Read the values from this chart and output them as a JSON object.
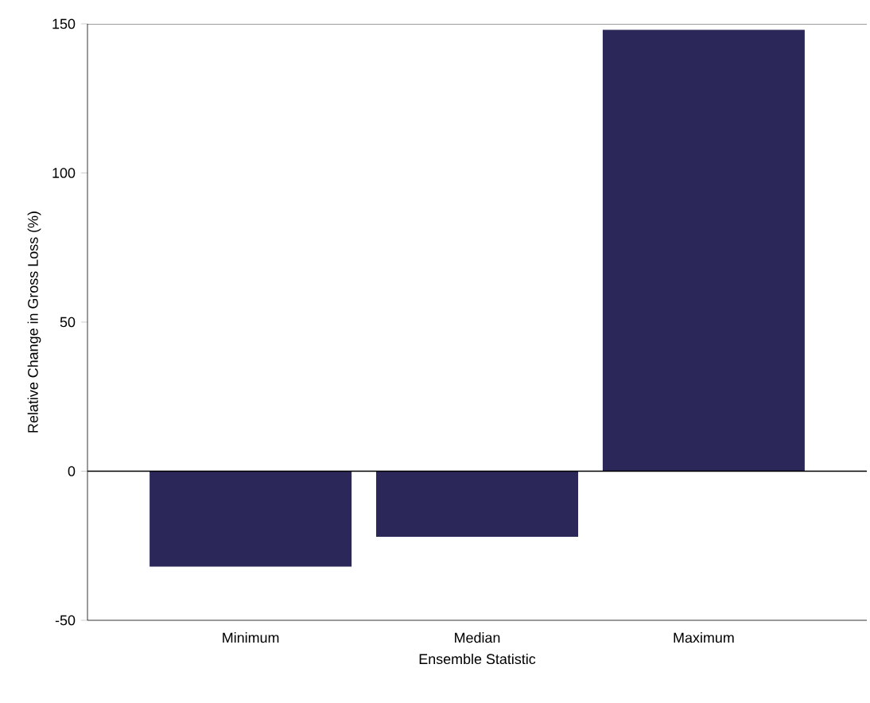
{
  "chart_data": {
    "type": "bar",
    "xlabel": "Ensemble Statistic",
    "ylabel": "Relative Change in Gross Loss (%)",
    "categories": [
      "Minimum",
      "Median",
      "Maximum"
    ],
    "values": [
      -32,
      -22,
      148
    ],
    "color": "#2b2758",
    "ylim": [
      -50,
      150
    ],
    "yticks": [
      -50,
      0,
      50,
      100,
      150
    ],
    "grid": false,
    "ref_lines": [
      {
        "axis": "y",
        "value": 0
      }
    ]
  }
}
